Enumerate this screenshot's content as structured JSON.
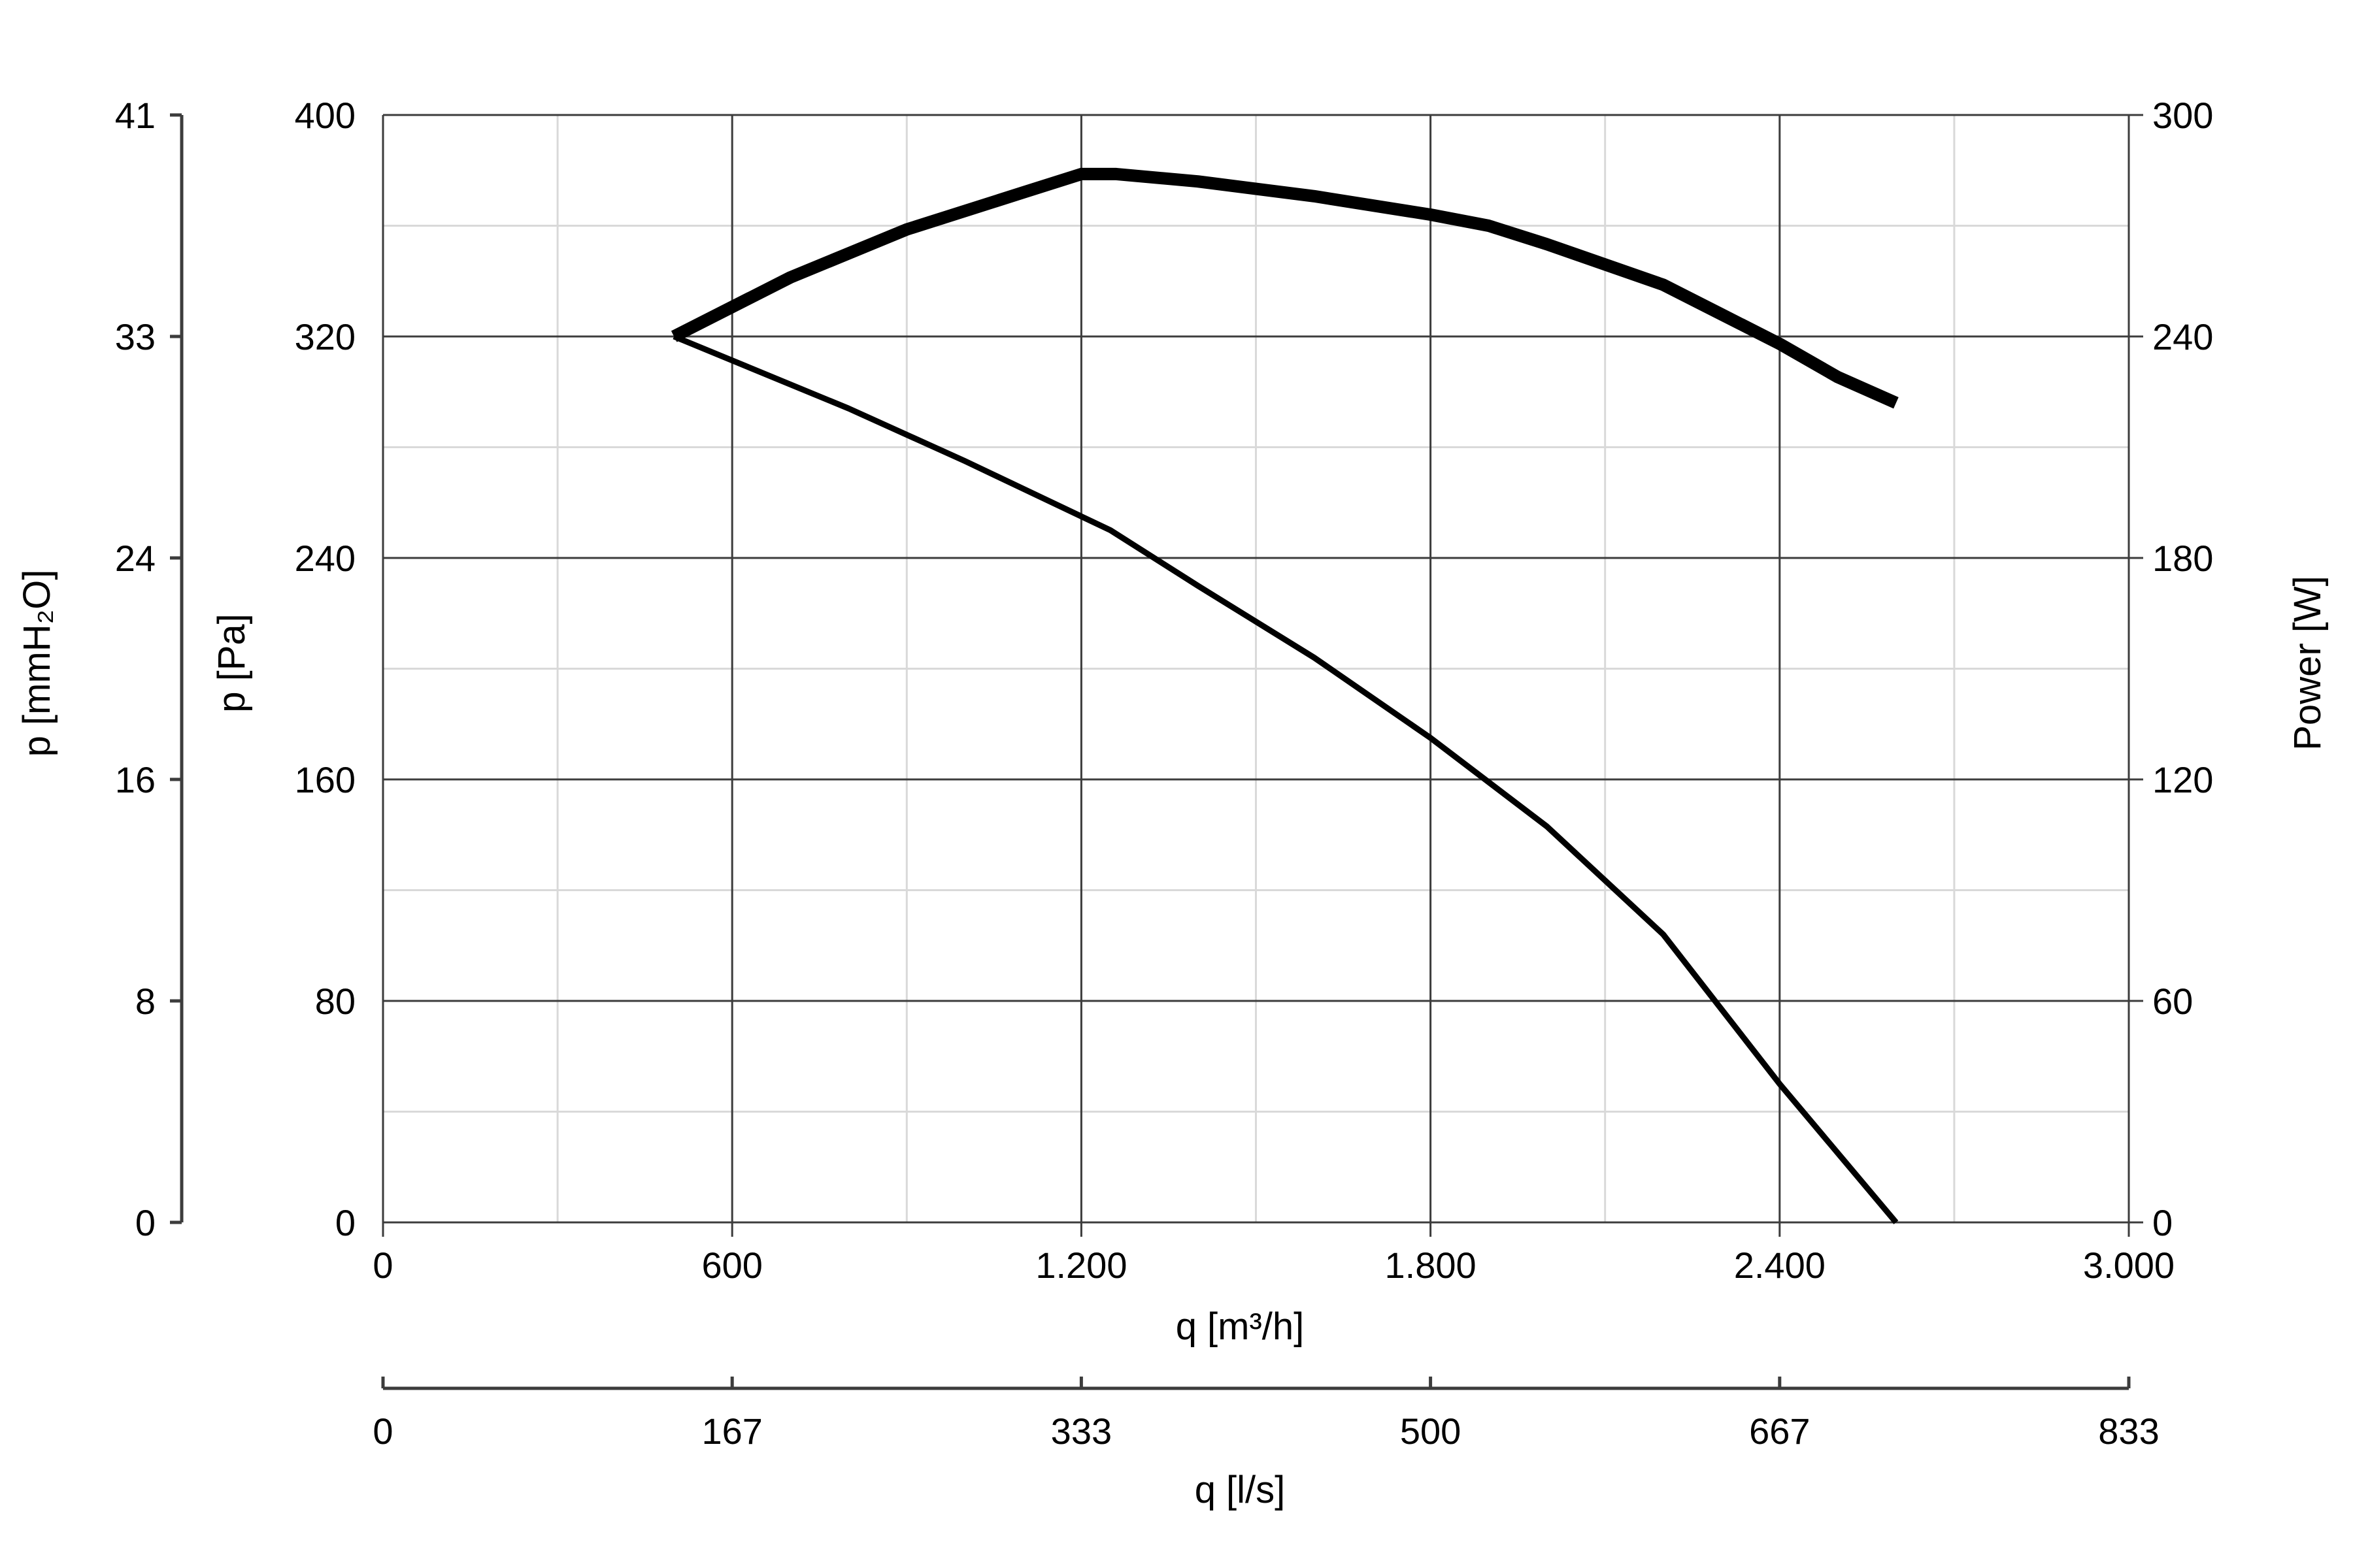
{
  "chart_data": {
    "type": "line",
    "x_axis": {
      "label": "q [m³/h]",
      "range": [
        0,
        3000
      ],
      "ticks": [
        0,
        600,
        1200,
        1800,
        2400,
        3000
      ],
      "tick_labels": [
        "0",
        "600",
        "1.200",
        "1.800",
        "2.400",
        "3.000"
      ]
    },
    "x2_axis": {
      "label": "q [l/s]",
      "tick_labels": [
        "0",
        "167",
        "333",
        "500",
        "667",
        "833"
      ]
    },
    "y_axis": {
      "label": "p [Pa]",
      "range": [
        0,
        400
      ],
      "ticks": [
        0,
        80,
        160,
        240,
        320,
        400
      ],
      "tick_labels": [
        "0",
        "80",
        "160",
        "240",
        "320",
        "400"
      ]
    },
    "y2_axis": {
      "label": "p [mmH₂O]",
      "tick_labels": [
        "0",
        "8",
        "16",
        "24",
        "33",
        "41"
      ]
    },
    "y3_axis": {
      "label": "Power [W]",
      "range": [
        0,
        300
      ],
      "tick_labels": [
        "0",
        "60",
        "120",
        "180",
        "240",
        "300"
      ]
    },
    "grid": true,
    "series": [
      {
        "axis": "y",
        "line_weight": "thin",
        "points": [
          [
            500,
            320
          ],
          [
            800,
            294
          ],
          [
            1000,
            275
          ],
          [
            1200,
            255
          ],
          [
            1250,
            250
          ],
          [
            1400,
            230
          ],
          [
            1600,
            204
          ],
          [
            1800,
            175
          ],
          [
            2000,
            143
          ],
          [
            2200,
            104
          ],
          [
            2400,
            50
          ],
          [
            2600,
            0
          ]
        ]
      },
      {
        "axis": "y3",
        "line_weight": "thick",
        "points": [
          [
            500,
            240
          ],
          [
            700,
            256
          ],
          [
            900,
            269
          ],
          [
            1100,
            279
          ],
          [
            1200,
            284
          ],
          [
            1260,
            284
          ],
          [
            1400,
            282
          ],
          [
            1600,
            278
          ],
          [
            1800,
            273
          ],
          [
            1900,
            270
          ],
          [
            2000,
            265
          ],
          [
            2200,
            254
          ],
          [
            2300,
            246
          ],
          [
            2400,
            238
          ],
          [
            2500,
            229
          ],
          [
            2600,
            222
          ]
        ]
      }
    ]
  }
}
